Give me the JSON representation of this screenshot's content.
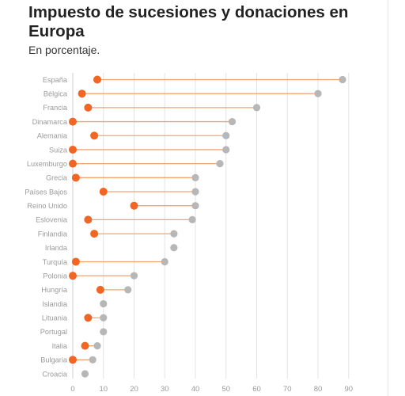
{
  "chart_data": {
    "type": "dumbbell",
    "title": "Impuesto de sucesiones y donaciones en Europa",
    "subtitle": "En porcentaje.",
    "xlabel": "",
    "ylabel": "",
    "xlim": [
      0,
      90
    ],
    "x_ticks": [
      "0",
      "10",
      "20",
      "30",
      "40",
      "50",
      "60",
      "70",
      "80",
      "90"
    ],
    "grid": true,
    "legend": "none",
    "categories": [
      "España",
      "Bélgica",
      "Francia",
      "Dinamarca",
      "Alemania",
      "Suiza",
      "Luxemburgo",
      "Grecia",
      "Países Bajos",
      "Reino Unido",
      "Eslovenia",
      "Finlandia",
      "Irlanda",
      "Turquía",
      "Polonia",
      "Hungría",
      "Islandia",
      "Lituania",
      "Portugal",
      "Italia",
      "Bulgaria",
      "Croacia"
    ],
    "series": [
      {
        "color": "#f26522",
        "values": [
          8,
          3,
          5,
          0,
          7,
          0,
          0,
          1,
          10,
          20,
          5,
          7,
          33,
          1,
          0,
          9,
          10,
          5,
          10,
          4,
          0,
          4
        ]
      },
      {
        "color": "#b7b7b7",
        "values": [
          88,
          80,
          60,
          52,
          50,
          50,
          48,
          40,
          40,
          40,
          39,
          33,
          33,
          30,
          20,
          18,
          10,
          10,
          10,
          8,
          6.5,
          4
        ]
      }
    ]
  }
}
